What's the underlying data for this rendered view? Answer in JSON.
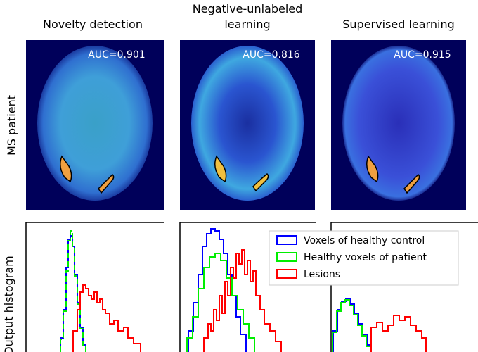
{
  "columns": [
    {
      "title": [
        "Novelty detection"
      ],
      "auc": "AUC=0.901"
    },
    {
      "title": [
        "Negative-unlabeled",
        "learning"
      ],
      "auc": "AUC=0.816"
    },
    {
      "title": [
        "Supervised learning"
      ],
      "auc": "AUC=0.915"
    }
  ],
  "row_label": "MS patient",
  "y_label": "Output histogram",
  "legend": [
    {
      "name": "Voxels of healthy control",
      "color": "#0000ff"
    },
    {
      "name": "Healthy voxels of patient",
      "color": "#00ee00"
    },
    {
      "name": "Lesions",
      "color": "#ff0000"
    }
  ]
}
